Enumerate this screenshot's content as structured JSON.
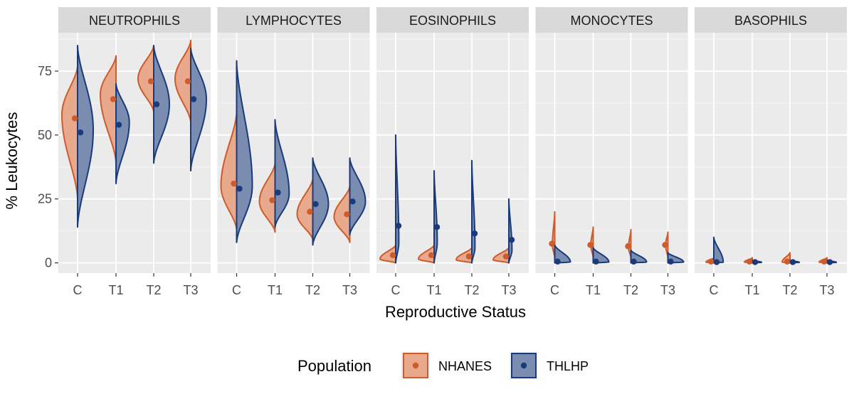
{
  "chart_data": {
    "type": "violin",
    "xlabel": "Reproductive Status",
    "ylabel": "% Leukocytes",
    "ylim": [
      -4,
      90
    ],
    "yticks": [
      0,
      25,
      50,
      75
    ],
    "categories": [
      "C",
      "T1",
      "T2",
      "T3"
    ],
    "legend": {
      "title": "Population",
      "position": "bottom",
      "entries": [
        {
          "name": "NHANES",
          "fill": "#e8a98c",
          "line": "#cd5c2a",
          "dot": "#cd5c2a"
        },
        {
          "name": "THLHP",
          "fill": "#7a8db0",
          "line": "#1a3a7a",
          "dot": "#1a3a7a"
        }
      ]
    },
    "panels": [
      {
        "name": "NEUTROPHILS",
        "series": {
          "NHANES": [
            {
              "category": "C",
              "mean": 56.5,
              "min": 25,
              "max": 77,
              "peak": 58,
              "width": 1.0
            },
            {
              "category": "T1",
              "mean": 64,
              "min": 39,
              "max": 81,
              "peak": 66,
              "width": 1.0
            },
            {
              "category": "T2",
              "mean": 71,
              "min": 59,
              "max": 85,
              "peak": 72,
              "width": 1.0
            },
            {
              "category": "T3",
              "mean": 71,
              "min": 55,
              "max": 87,
              "peak": 72,
              "width": 1.0
            }
          ],
          "THLHP": [
            {
              "category": "C",
              "mean": 51,
              "min": 14,
              "max": 85,
              "peak": 52,
              "width": 1.0
            },
            {
              "category": "T1",
              "mean": 54,
              "min": 31,
              "max": 70,
              "peak": 55,
              "width": 0.85
            },
            {
              "category": "T2",
              "mean": 62,
              "min": 39,
              "max": 85,
              "peak": 62,
              "width": 1.0
            },
            {
              "category": "T3",
              "mean": 64,
              "min": 36,
              "max": 84,
              "peak": 64,
              "width": 1.0
            }
          ]
        }
      },
      {
        "name": "LYMPHOCYTES",
        "series": {
          "NHANES": [
            {
              "category": "C",
              "mean": 31,
              "min": 13,
              "max": 59,
              "peak": 30,
              "width": 1.0
            },
            {
              "category": "T1",
              "mean": 24.5,
              "min": 12,
              "max": 39,
              "peak": 24,
              "width": 1.0
            },
            {
              "category": "T2",
              "mean": 20,
              "min": 9,
              "max": 33,
              "peak": 19,
              "width": 1.0
            },
            {
              "category": "T3",
              "mean": 19,
              "min": 8,
              "max": 30,
              "peak": 18,
              "width": 1.0
            }
          ],
          "THLHP": [
            {
              "category": "C",
              "mean": 29,
              "min": 8,
              "max": 79,
              "peak": 30,
              "width": 1.0
            },
            {
              "category": "T1",
              "mean": 27.5,
              "min": 14,
              "max": 56,
              "peak": 27,
              "width": 0.9
            },
            {
              "category": "T2",
              "mean": 23,
              "min": 7,
              "max": 41,
              "peak": 23,
              "width": 1.0
            },
            {
              "category": "T3",
              "mean": 24,
              "min": 11,
              "max": 41,
              "peak": 24,
              "width": 1.0
            }
          ]
        }
      },
      {
        "name": "EOSINOPHILS",
        "series": {
          "NHANES": [
            {
              "category": "C",
              "mean": 3,
              "min": 0,
              "max": 7,
              "peak": 1.5,
              "width": 1.0
            },
            {
              "category": "T1",
              "mean": 3,
              "min": 0,
              "max": 7,
              "peak": 1.5,
              "width": 1.0
            },
            {
              "category": "T2",
              "mean": 2.5,
              "min": 0,
              "max": 6,
              "peak": 1.2,
              "width": 1.0
            },
            {
              "category": "T3",
              "mean": 2.5,
              "min": 0,
              "max": 6,
              "peak": 1.2,
              "width": 1.0
            }
          ],
          "THLHP": [
            {
              "category": "C",
              "mean": 14.5,
              "min": 0,
              "max": 50,
              "peak": 8,
              "width": 0.2
            },
            {
              "category": "T1",
              "mean": 14,
              "min": 0,
              "max": 36,
              "peak": 8,
              "width": 0.2
            },
            {
              "category": "T2",
              "mean": 11.5,
              "min": 0,
              "max": 40,
              "peak": 6,
              "width": 0.2
            },
            {
              "category": "T3",
              "mean": 9,
              "min": 0,
              "max": 25,
              "peak": 5,
              "width": 0.2
            }
          ]
        }
      },
      {
        "name": "MONOCYTES",
        "series": {
          "NHANES": [
            {
              "category": "C",
              "mean": 7.5,
              "min": 2,
              "max": 20,
              "peak": 7,
              "width": 0.15
            },
            {
              "category": "T1",
              "mean": 7,
              "min": 2,
              "max": 14,
              "peak": 7,
              "width": 0.15
            },
            {
              "category": "T2",
              "mean": 6.5,
              "min": 2,
              "max": 13,
              "peak": 6,
              "width": 0.15
            },
            {
              "category": "T3",
              "mean": 7,
              "min": 2,
              "max": 12,
              "peak": 7,
              "width": 0.15
            }
          ],
          "THLHP": [
            {
              "category": "C",
              "mean": 0.5,
              "min": 0,
              "max": 7,
              "peak": 0.3,
              "width": 1.0
            },
            {
              "category": "T1",
              "mean": 0.5,
              "min": 0,
              "max": 6,
              "peak": 0.3,
              "width": 1.0
            },
            {
              "category": "T2",
              "mean": 0.5,
              "min": 0,
              "max": 5,
              "peak": 0.3,
              "width": 1.0
            },
            {
              "category": "T3",
              "mean": 0.5,
              "min": 0,
              "max": 4,
              "peak": 0.3,
              "width": 1.0
            }
          ]
        }
      },
      {
        "name": "BASOPHILS",
        "series": {
          "NHANES": [
            {
              "category": "C",
              "mean": 0.5,
              "min": 0,
              "max": 2,
              "peak": 0.3,
              "width": 0.5
            },
            {
              "category": "T1",
              "mean": 0.5,
              "min": 0,
              "max": 2,
              "peak": 0.3,
              "width": 0.5
            },
            {
              "category": "T2",
              "mean": 0.5,
              "min": 0,
              "max": 4,
              "peak": 0.3,
              "width": 0.5
            },
            {
              "category": "T3",
              "mean": 0.5,
              "min": 0,
              "max": 2,
              "peak": 0.3,
              "width": 0.5
            }
          ],
          "THLHP": [
            {
              "category": "C",
              "mean": 0.3,
              "min": 0,
              "max": 10,
              "peak": 0.2,
              "width": 0.6
            },
            {
              "category": "T1",
              "mean": 0.3,
              "min": 0,
              "max": 1,
              "peak": 0.2,
              "width": 0.6
            },
            {
              "category": "T2",
              "mean": 0.3,
              "min": 0,
              "max": 1,
              "peak": 0.2,
              "width": 0.6
            },
            {
              "category": "T3",
              "mean": 0.3,
              "min": 0,
              "max": 1,
              "peak": 0.2,
              "width": 0.6
            }
          ]
        }
      }
    ]
  }
}
